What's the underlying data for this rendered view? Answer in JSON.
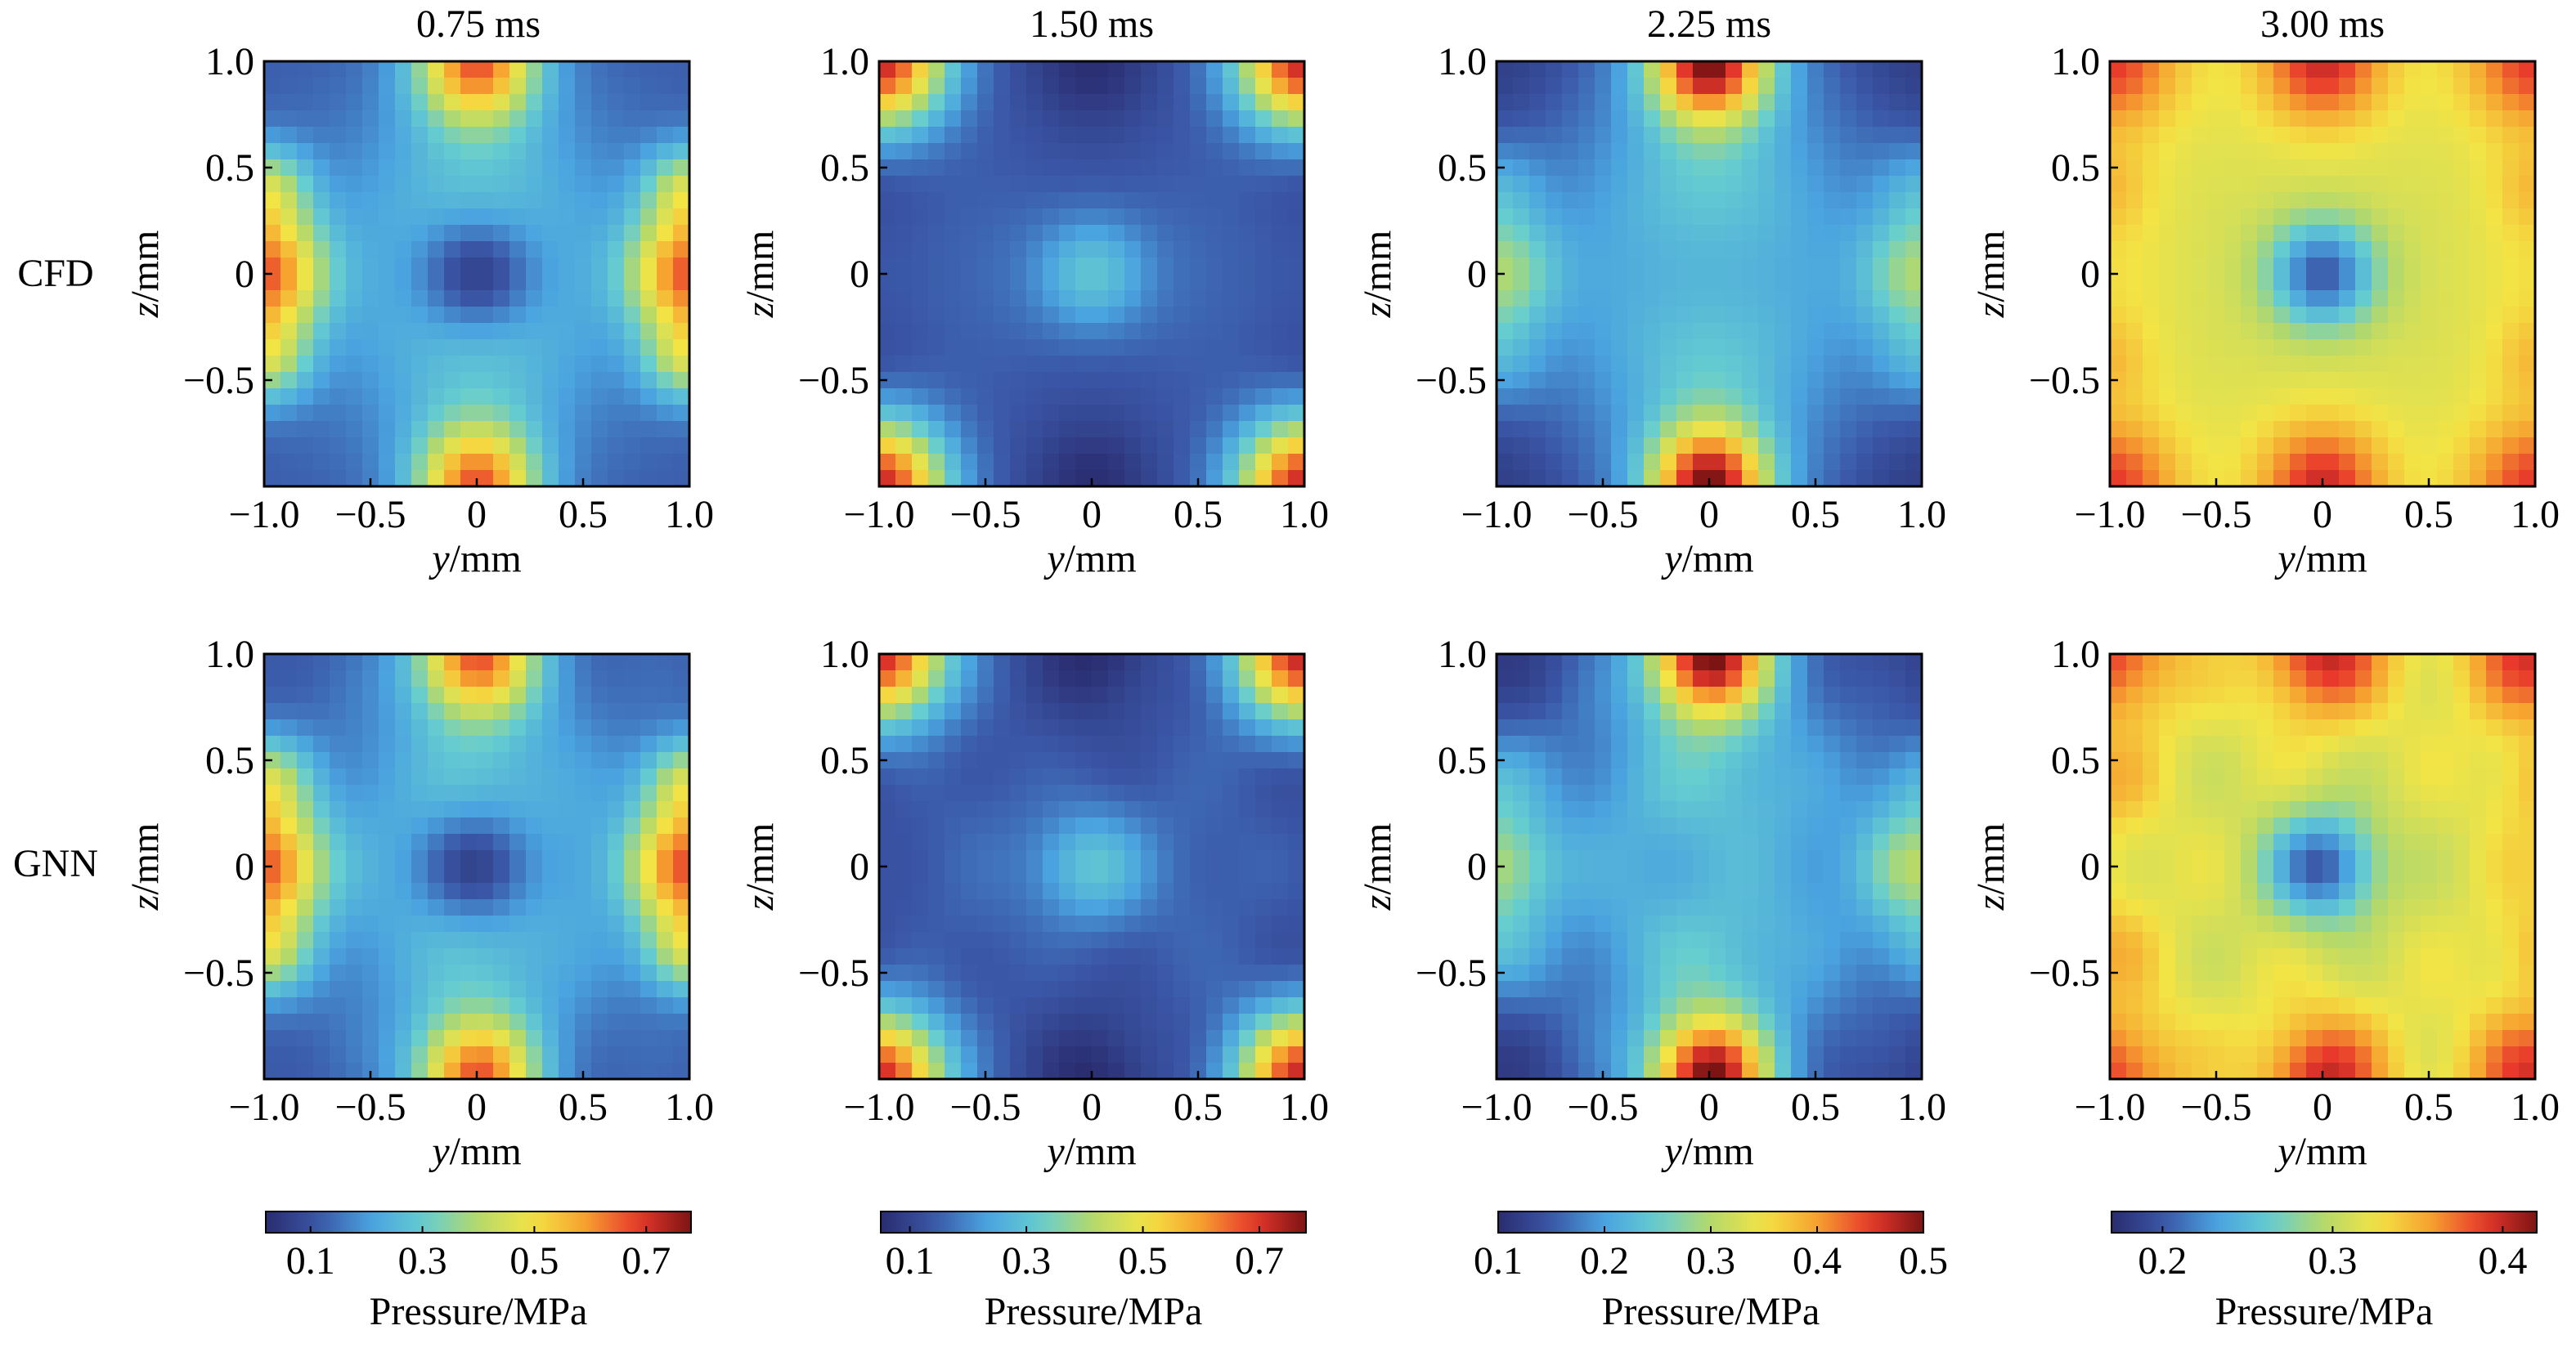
{
  "figure": {
    "column_titles": [
      "0.75 ms",
      "1.50 ms",
      "2.25 ms",
      "3.00 ms"
    ],
    "row_labels": [
      "CFD",
      "GNN"
    ],
    "x_axis_label": {
      "italic": "y",
      "rest": "/mm"
    },
    "y_axis_label": {
      "italic": "z",
      "rest": "/mm"
    },
    "colorbar_label": "Pressure/MPa"
  },
  "chart_data": {
    "type": "heatmap",
    "colormap": "jet",
    "colormap_stops": [
      "#2a2c6f",
      "#3a56a6",
      "#4aa3df",
      "#66cdd0",
      "#b5d96a",
      "#f3e445",
      "#f6a12f",
      "#e8382c",
      "#7d1414"
    ],
    "x_ticks": [
      "−1.0",
      "−0.5",
      "0",
      "0.5",
      "1.0"
    ],
    "y_ticks": [
      "−0.5",
      "0",
      "0.5",
      "1.0"
    ],
    "xlim": [
      -1.0,
      1.0
    ],
    "ylim": [
      -1.0,
      1.0
    ],
    "grid": false,
    "columns": [
      {
        "time": "0.75 ms",
        "colorbar": {
          "range": [
            0.02,
            0.78
          ],
          "ticks": [
            "0.1",
            "0.3",
            "0.5",
            "0.7"
          ],
          "tick_values": [
            0.1,
            0.3,
            0.5,
            0.7
          ]
        },
        "field": {
          "background": 0.12,
          "center": 0.04,
          "corner": 0.12,
          "edge_mid": 0.28,
          "edge_lobe": 0.65,
          "inner": 0.35,
          "top_bottom": 0.62,
          "left_right": 0.62
        }
      },
      {
        "time": "1.50 ms",
        "colorbar": {
          "range": [
            0.05,
            0.78
          ],
          "ticks": [
            "0.1",
            "0.3",
            "0.5",
            "0.7"
          ],
          "tick_values": [
            0.1,
            0.3,
            0.5,
            0.7
          ]
        },
        "field": {
          "background": 0.13,
          "center": 0.32,
          "corner": 0.72,
          "edge_mid": 0.06,
          "edge_lobe": 0.1,
          "inner": 0.22,
          "top_bottom": 0.05,
          "left_right": 0.13
        }
      },
      {
        "time": "2.25 ms",
        "colorbar": {
          "range": [
            0.1,
            0.5
          ],
          "ticks": [
            "0.1",
            "0.2",
            "0.3",
            "0.4",
            "0.5"
          ],
          "tick_values": [
            0.1,
            0.2,
            0.3,
            0.4,
            0.5
          ]
        },
        "field": {
          "background": 0.15,
          "center": 0.2,
          "corner": 0.12,
          "edge_mid": 0.26,
          "edge_lobe": 0.25,
          "inner": 0.27,
          "top_bottom": 0.48,
          "left_right": 0.28
        }
      },
      {
        "time": "3.00 ms",
        "colorbar": {
          "range": [
            0.17,
            0.42
          ],
          "ticks": [
            "0.2",
            "0.3",
            "0.4"
          ],
          "tick_values": [
            0.2,
            0.3,
            0.4
          ]
        },
        "field": {
          "background": 0.32,
          "center": 0.2,
          "corner": 0.39,
          "edge_mid": 0.33,
          "edge_lobe": 0.37,
          "inner": 0.3,
          "top_bottom": 0.4,
          "left_right": 0.33
        }
      }
    ]
  }
}
